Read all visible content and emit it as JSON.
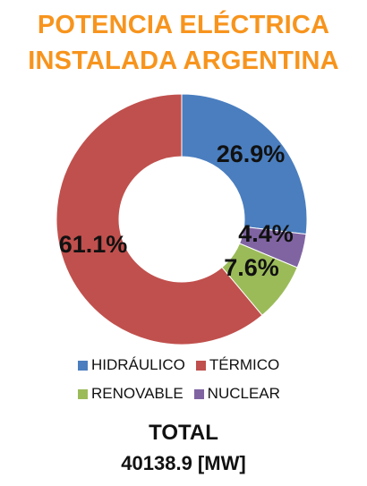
{
  "title_line1": "POTENCIA ELÉCTRICA",
  "title_line2": "INSTALADA  ARGENTINA",
  "chart_data": {
    "type": "pie",
    "variant": "donut",
    "title": "POTENCIA ELÉCTRICA INSTALADA  ARGENTINA",
    "categories": [
      "HIDRÁULICO",
      "NUCLEAR",
      "RENOVABLE",
      "TÉRMICO"
    ],
    "values": [
      26.9,
      4.4,
      7.6,
      61.1
    ],
    "labels": [
      "26.9%",
      "4.4%",
      "7.6%",
      "61.1%"
    ],
    "colors": [
      "#4a7ebf",
      "#8064a2",
      "#9bbb59",
      "#c0504d"
    ],
    "legend_position": "bottom"
  },
  "legend": {
    "row1": [
      {
        "label": "HIDRÁULICO",
        "color": "#4a7ebf"
      },
      {
        "label": "TÉRMICO",
        "color": "#c0504d"
      }
    ],
    "row2": [
      {
        "label": "RENOVABLE",
        "color": "#9bbb59"
      },
      {
        "label": "NUCLEAR",
        "color": "#8064a2"
      }
    ]
  },
  "total": {
    "label": "TOTAL",
    "value": "40138.9 [MW]"
  }
}
